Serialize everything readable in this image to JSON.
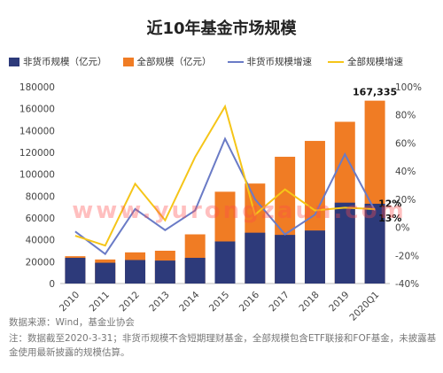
{
  "title": "近10年基金市场规模",
  "chart_data": {
    "type": "bar",
    "categories": [
      "2010",
      "2011",
      "2012",
      "2013",
      "2014",
      "2015",
      "2016",
      "2017",
      "2018",
      "2019",
      "2020Q1"
    ],
    "series": [
      {
        "name": "非货币规模（亿元）",
        "kind": "bar",
        "axis": "left",
        "color": "#2d3a7a",
        "values": [
          23500,
          19000,
          21500,
          21000,
          23500,
          38500,
          46500,
          44500,
          48500,
          74000,
          73000
        ]
      },
      {
        "name": "全部规模（亿元）",
        "kind": "bar",
        "axis": "left",
        "color": "#f07c24",
        "values": [
          25000,
          22000,
          28500,
          30000,
          45000,
          84000,
          91500,
          116000,
          130500,
          148000,
          167335
        ]
      },
      {
        "name": "非货币规模增速",
        "kind": "line",
        "axis": "right",
        "color": "#6a7bc6",
        "values": [
          -3,
          -19,
          13,
          -2,
          12,
          63,
          20,
          -5,
          9,
          52,
          12
        ]
      },
      {
        "name": "全部规模增速",
        "kind": "line",
        "axis": "right",
        "color": "#f5c518",
        "values": [
          -6,
          -13,
          31,
          5,
          50,
          86,
          9,
          27,
          12,
          14,
          13
        ]
      }
    ],
    "ylim_left": [
      0,
      180000
    ],
    "yticks_left": [
      "0",
      "20000",
      "40000",
      "60000",
      "80000",
      "100000",
      "120000",
      "140000",
      "160000",
      "180000"
    ],
    "ylim_right": [
      -40,
      100
    ],
    "yticks_right": [
      "-40%",
      "-20%",
      "0%",
      "20%",
      "40%",
      "60%",
      "80%",
      "100%"
    ],
    "annotations": {
      "total_last": "167,335",
      "nonmoney_growth_last": "12%",
      "total_growth_last": "13%"
    }
  },
  "legend": [
    "非货币规模（亿元）",
    "全部规模（亿元）",
    "非货币规模增速",
    "全部规模增速"
  ],
  "watermark": "www.yurongzaun.com",
  "source": "数据来源：Wind，基金业协会",
  "note": "注：数据截至2020-3-31；非货币规模不含短期理财基金，全部规模包含ETF联接和FOF基金，未披露基金使用最新披露的规模估算。"
}
